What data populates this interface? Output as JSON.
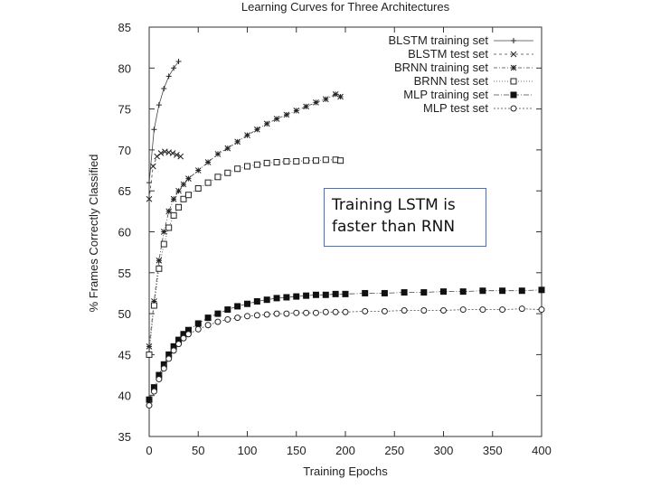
{
  "chart_data": {
    "type": "line",
    "title": "Learning Curves for Three Architectures",
    "xlabel": "Training Epochs",
    "ylabel": "% Frames Correctly Classified",
    "xlim": [
      0,
      400
    ],
    "ylim": [
      35,
      85
    ],
    "xticks": [
      0,
      50,
      100,
      150,
      200,
      250,
      300,
      350,
      400
    ],
    "yticks": [
      35,
      40,
      45,
      50,
      55,
      60,
      65,
      70,
      75,
      80,
      85
    ],
    "grid": false,
    "legend_position": "top-right",
    "series": [
      {
        "name": "BLSTM training set",
        "marker": "plus",
        "x": [
          0,
          5,
          10,
          15,
          20,
          25,
          30
        ],
        "y": [
          66.0,
          72.5,
          75.5,
          77.5,
          79.0,
          80.0,
          80.8
        ]
      },
      {
        "name": "BLSTM test set",
        "marker": "cross",
        "x": [
          0,
          4,
          8,
          12,
          16,
          20,
          24,
          28,
          32
        ],
        "y": [
          64.0,
          68.0,
          69.2,
          69.6,
          69.8,
          69.7,
          69.6,
          69.4,
          69.2
        ]
      },
      {
        "name": "BRNN training set",
        "marker": "star",
        "x": [
          0,
          5,
          10,
          15,
          20,
          25,
          30,
          35,
          40,
          50,
          60,
          70,
          80,
          90,
          100,
          110,
          120,
          130,
          140,
          150,
          160,
          170,
          180,
          190,
          195
        ],
        "y": [
          46.0,
          51.5,
          56.5,
          60.0,
          62.5,
          64.0,
          65.0,
          65.8,
          66.5,
          67.5,
          68.5,
          69.5,
          70.2,
          71.0,
          71.8,
          72.5,
          73.2,
          73.8,
          74.3,
          74.8,
          75.3,
          75.8,
          76.2,
          76.8,
          76.5
        ]
      },
      {
        "name": "BRNN test set",
        "marker": "square",
        "x": [
          0,
          5,
          10,
          15,
          20,
          25,
          30,
          35,
          40,
          50,
          60,
          70,
          80,
          90,
          100,
          110,
          120,
          130,
          140,
          150,
          160,
          170,
          180,
          190,
          195
        ],
        "y": [
          45.0,
          51.0,
          55.5,
          58.5,
          60.5,
          62.0,
          63.0,
          64.0,
          64.5,
          65.3,
          66.0,
          66.7,
          67.2,
          67.7,
          68.0,
          68.2,
          68.4,
          68.5,
          68.6,
          68.6,
          68.7,
          68.7,
          68.8,
          68.8,
          68.7
        ]
      },
      {
        "name": "MLP training set",
        "marker": "filled-square",
        "x": [
          0,
          5,
          10,
          15,
          20,
          25,
          30,
          35,
          40,
          50,
          60,
          70,
          80,
          90,
          100,
          110,
          120,
          130,
          140,
          150,
          160,
          170,
          180,
          190,
          200,
          220,
          240,
          260,
          280,
          300,
          320,
          340,
          360,
          380,
          400
        ],
        "y": [
          39.5,
          41.0,
          42.5,
          43.8,
          45.0,
          46.0,
          46.8,
          47.5,
          48.0,
          48.8,
          49.5,
          50.0,
          50.5,
          50.9,
          51.2,
          51.5,
          51.7,
          51.9,
          52.0,
          52.1,
          52.2,
          52.3,
          52.3,
          52.4,
          52.4,
          52.5,
          52.5,
          52.6,
          52.6,
          52.7,
          52.7,
          52.8,
          52.8,
          52.8,
          52.9
        ]
      },
      {
        "name": "MLP test set",
        "marker": "circle",
        "x": [
          0,
          5,
          10,
          15,
          20,
          25,
          30,
          35,
          40,
          50,
          60,
          70,
          80,
          90,
          100,
          110,
          120,
          130,
          140,
          150,
          160,
          170,
          180,
          190,
          200,
          220,
          240,
          260,
          280,
          300,
          320,
          340,
          360,
          380,
          400
        ],
        "y": [
          38.8,
          40.5,
          42.0,
          43.3,
          44.5,
          45.5,
          46.3,
          47.0,
          47.5,
          48.1,
          48.6,
          49.0,
          49.3,
          49.5,
          49.7,
          49.8,
          49.9,
          50.0,
          50.0,
          50.1,
          50.1,
          50.1,
          50.2,
          50.2,
          50.2,
          50.3,
          50.3,
          50.4,
          50.4,
          50.4,
          50.5,
          50.5,
          50.5,
          50.6,
          50.5
        ]
      }
    ],
    "annotation": "Training LSTM is\nfaster than RNN"
  }
}
